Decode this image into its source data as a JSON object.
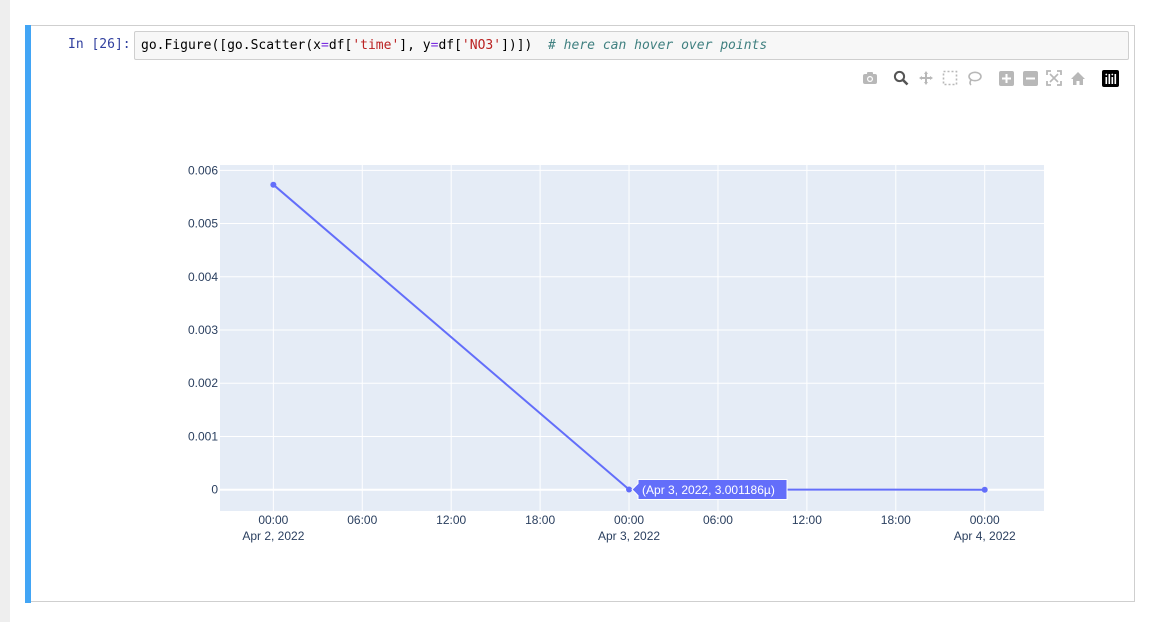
{
  "cell": {
    "prompt": "In [26]:",
    "code": {
      "p1": "go.Figure([go.Scatter(x",
      "eq1": "=",
      "p2": "df[",
      "s1": "'time'",
      "p3": "], y",
      "eq2": "=",
      "p4": "df[",
      "s2": "'NO3'",
      "p5": "])])  ",
      "comment": "# here can hover over points"
    }
  },
  "modebar": {
    "buttons": [
      "camera-icon",
      "zoom-icon",
      "pan-icon",
      "box-select-icon",
      "lasso-icon",
      "zoom-in-icon",
      "zoom-out-icon",
      "autoscale-icon",
      "reset-axes-icon",
      "plotly-logo-icon"
    ]
  },
  "colors": {
    "line": "#636efa",
    "plot_bg": "#e5ecf6",
    "cell_bar": "#42a5f5"
  },
  "chart_data": {
    "type": "line",
    "x": [
      "2022-04-02 00:00",
      "2022-04-03 00:00",
      "2022-04-04 00:00"
    ],
    "series": [
      {
        "values": [
          0.00573,
          3.001186e-06,
          1e-07
        ]
      }
    ],
    "ylim": [
      -0.0004,
      0.0061
    ],
    "xlim": [
      "2022-04-01 20:24",
      "2022-04-04 04:00"
    ],
    "y_ticks": [
      "0",
      "0.001",
      "0.002",
      "0.003",
      "0.004",
      "0.005",
      "0.006"
    ],
    "x_ticks": [
      {
        "time": "00:00",
        "date": "Apr 2, 2022"
      },
      {
        "time": "06:00",
        "date": ""
      },
      {
        "time": "12:00",
        "date": ""
      },
      {
        "time": "18:00",
        "date": ""
      },
      {
        "time": "00:00",
        "date": "Apr 3, 2022"
      },
      {
        "time": "06:00",
        "date": ""
      },
      {
        "time": "12:00",
        "date": ""
      },
      {
        "time": "18:00",
        "date": ""
      },
      {
        "time": "00:00",
        "date": "Apr 4, 2022"
      }
    ],
    "hover_label": "(Apr 3, 2022, 3.001186µ)",
    "grid": true
  }
}
